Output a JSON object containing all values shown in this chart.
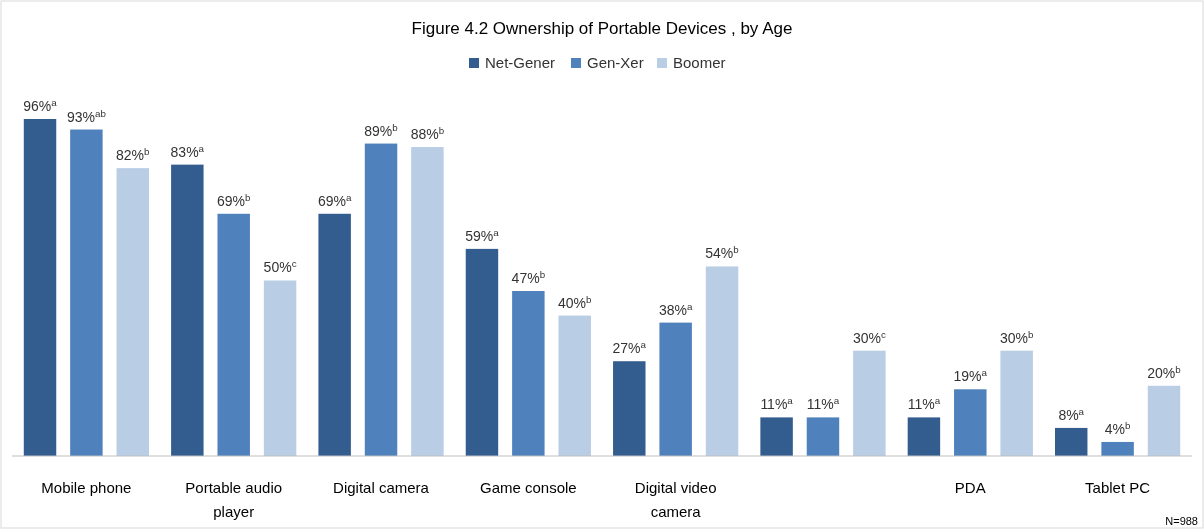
{
  "chart_data": {
    "type": "bar",
    "title": "Figure 4.2 Ownership of Portable Devices , by Age",
    "categories": [
      "Mobile phone",
      "Portable audio player",
      "Digital camera",
      "Game console",
      "Digital video camera",
      null,
      "PDA",
      "Tablet PC"
    ],
    "series": [
      {
        "name": "Net-Gener",
        "color": "#335d8f",
        "values": [
          96,
          83,
          69,
          59,
          27,
          11,
          11,
          8
        ],
        "value_labels": [
          "96%$^{a}$",
          "83%$^{a}$",
          "69%$^{a}$",
          "59%$^{a}$",
          "27%$^{a}$",
          "11%$^{a}$",
          "11%$^{a}$",
          "8%$^{a}$"
        ]
      },
      {
        "name": "Gen-Xer",
        "color": "#4f81bd",
        "values": [
          93,
          69,
          89,
          47,
          38,
          11,
          19,
          4
        ],
        "value_labels": [
          "93%$^{ab}$",
          "69%$^{b}$",
          "89%$^{b}$",
          "47%$^{b}$",
          "38%$^{a}$",
          "11%$^{a}$",
          "19%$^{a}$",
          "4%$^{b}$"
        ]
      },
      {
        "name": "Boomer",
        "color": "#b9cde5",
        "values": [
          82,
          50,
          88,
          40,
          54,
          30,
          30,
          20
        ],
        "value_labels": [
          "82%$^{b}$",
          "50%$^{c}$",
          "88%$^{b}$",
          "40%$^{b}$",
          "54%$^{b}$",
          "30%$^{c}$",
          "30%$^{b}$",
          "20%$^{b}$"
        ]
      }
    ],
    "legend": "top",
    "annotations": [
      "N=988"
    ]
  }
}
